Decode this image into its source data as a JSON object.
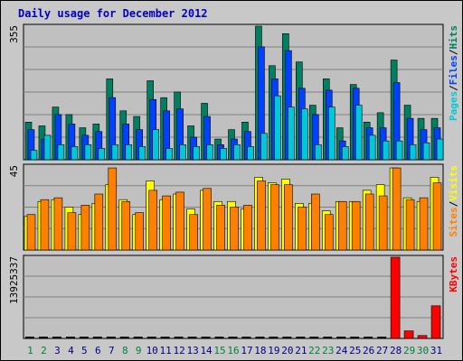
{
  "chart_data": [
    {
      "type": "bar",
      "panel": "hits-files-pages",
      "title": "Daily usage for December 2012",
      "ymax_label": "355",
      "ylim": [
        0,
        355
      ],
      "legend_placement": "right",
      "legend": [
        {
          "name": "Pages",
          "color": "#00c8d8"
        },
        {
          "name": "Files",
          "color": "#0040ff"
        },
        {
          "name": "Hits",
          "color": "#008060"
        }
      ],
      "separator": "/",
      "categories": [
        "1",
        "2",
        "3",
        "4",
        "5",
        "6",
        "7",
        "8",
        "9",
        "10",
        "11",
        "12",
        "13",
        "14",
        "15",
        "16",
        "17",
        "18",
        "19",
        "20",
        "21",
        "22",
        "23",
        "24",
        "25",
        "26",
        "27",
        "28",
        "29",
        "30",
        "31"
      ],
      "series": [
        {
          "name": "Hits",
          "color": "#008060",
          "values": [
            100,
            90,
            140,
            120,
            85,
            95,
            215,
            130,
            115,
            210,
            165,
            180,
            90,
            150,
            55,
            80,
            100,
            355,
            250,
            335,
            260,
            145,
            215,
            85,
            200,
            100,
            125,
            265,
            145,
            110,
            110
          ]
        },
        {
          "name": "Files",
          "color": "#0040ff",
          "values": [
            80,
            55,
            120,
            95,
            65,
            75,
            165,
            95,
            80,
            160,
            130,
            135,
            60,
            115,
            40,
            55,
            75,
            300,
            215,
            290,
            190,
            120,
            185,
            50,
            190,
            85,
            85,
            205,
            110,
            80,
            85
          ]
        },
        {
          "name": "Pages",
          "color": "#00c8d8",
          "values": [
            25,
            65,
            40,
            35,
            40,
            30,
            40,
            40,
            35,
            80,
            30,
            40,
            35,
            40,
            30,
            40,
            35,
            70,
            170,
            140,
            135,
            40,
            140,
            35,
            145,
            65,
            50,
            50,
            40,
            45,
            55
          ]
        }
      ]
    },
    {
      "type": "bar",
      "panel": "visits-sites",
      "ymax_label": "45",
      "ylim": [
        0,
        45
      ],
      "legend_placement": "right",
      "legend": [
        {
          "name": "Sites",
          "color": "#ff8000"
        },
        {
          "name": "Visits",
          "color": "#ffff00"
        }
      ],
      "separator": "/",
      "categories": [
        "1",
        "2",
        "3",
        "4",
        "5",
        "6",
        "7",
        "8",
        "9",
        "10",
        "11",
        "12",
        "13",
        "14",
        "15",
        "16",
        "17",
        "18",
        "19",
        "20",
        "21",
        "22",
        "23",
        "24",
        "25",
        "26",
        "27",
        "28",
        "29",
        "30",
        "31"
      ],
      "series": [
        {
          "name": "Visits",
          "color": "#ffff00",
          "values": [
            18,
            26,
            27,
            23,
            19,
            25,
            35,
            27,
            19,
            37,
            27,
            30,
            22,
            32,
            26,
            26,
            22,
            39,
            36,
            38,
            25,
            25,
            21,
            26,
            26,
            32,
            35,
            44,
            28,
            26,
            39
          ]
        },
        {
          "name": "Sites",
          "color": "#ff8000",
          "values": [
            19,
            27,
            28,
            20,
            24,
            30,
            44,
            26,
            20,
            32,
            29,
            31,
            19,
            33,
            24,
            23,
            24,
            37,
            35,
            35,
            23,
            30,
            19,
            26,
            26,
            30,
            29,
            44,
            27,
            28,
            36
          ]
        }
      ]
    },
    {
      "type": "bar",
      "panel": "kbytes",
      "ymax_label": "13925337",
      "ylim": [
        0,
        13925337
      ],
      "legend_placement": "right",
      "legend": [
        {
          "name": "KBytes",
          "color": "#ff0000"
        }
      ],
      "categories": [
        "1",
        "2",
        "3",
        "4",
        "5",
        "6",
        "7",
        "8",
        "9",
        "10",
        "11",
        "12",
        "13",
        "14",
        "15",
        "16",
        "17",
        "18",
        "19",
        "20",
        "21",
        "22",
        "23",
        "24",
        "25",
        "26",
        "27",
        "28",
        "29",
        "30",
        "31"
      ],
      "weekend_days": [
        "1",
        "2",
        "8",
        "9",
        "15",
        "16",
        "22",
        "23",
        "29",
        "30"
      ],
      "series": [
        {
          "name": "KBytes",
          "color": "#ff0000",
          "values": [
            0,
            0,
            0,
            0,
            0,
            0,
            0,
            0,
            0,
            0,
            0,
            0,
            0,
            0,
            0,
            0,
            0,
            0,
            0,
            0,
            0,
            0,
            0,
            0,
            0,
            0,
            0,
            13925337,
            1300000,
            500000,
            5600000
          ]
        }
      ]
    }
  ]
}
